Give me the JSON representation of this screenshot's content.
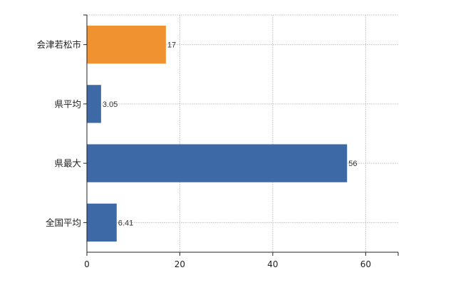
{
  "chart_data": {
    "type": "bar",
    "orientation": "horizontal",
    "categories": [
      "会津若松市",
      "県平均",
      "県最大",
      "全国平均"
    ],
    "values": [
      17,
      3.05,
      56,
      6.41
    ],
    "value_labels": [
      "17",
      "3.05",
      "56",
      "6.41"
    ],
    "bar_colors": [
      "#F0922F",
      "#3D6AA6",
      "#3D6AA6",
      "#3D6AA6"
    ],
    "xlim": [
      0,
      67
    ],
    "xticks": [
      0,
      20,
      40,
      60
    ],
    "grid": true,
    "title": "",
    "xlabel": "",
    "ylabel": ""
  }
}
